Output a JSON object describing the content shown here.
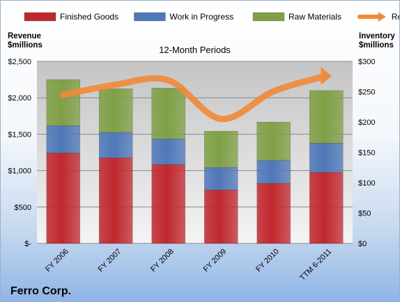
{
  "chart_data": {
    "type": "bar",
    "stacked": true,
    "title": "12-Month Periods",
    "footer": "Ferro Corp.",
    "categories": [
      "FY 2006",
      "FY 2007",
      "FY 2008",
      "FY 2009",
      "FY 2010",
      "TTM 6-2011"
    ],
    "series": [
      {
        "name": "Finished Goods",
        "axis": "right",
        "color": "#c0282d",
        "values": [
          149,
          141,
          130,
          88,
          99,
          117
        ]
      },
      {
        "name": "Work in Progress",
        "axis": "right",
        "color": "#4f78b8",
        "values": [
          45,
          42,
          42,
          37,
          38,
          48
        ]
      },
      {
        "name": "Raw Materials",
        "axis": "right",
        "color": "#7fa046",
        "values": [
          76,
          72,
          84,
          60,
          63,
          87
        ]
      },
      {
        "name": "Revenue",
        "axis": "left",
        "type": "line",
        "color": "#f08a3a",
        "values": [
          2040,
          2180,
          2240,
          1710,
          2090,
          2300
        ]
      }
    ],
    "y_left": {
      "label": [
        "Revenue",
        "$millions"
      ],
      "ylim": [
        0,
        2500
      ],
      "ticks": [
        0,
        500,
        1000,
        1500,
        2000,
        2500
      ],
      "tick_labels": [
        "$-",
        "$500",
        "$1,000",
        "$1,500",
        "$2,000",
        "$2,500"
      ]
    },
    "y_right": {
      "label": [
        "Inventory",
        "$millions"
      ],
      "ylim": [
        0,
        300
      ],
      "ticks": [
        0,
        50,
        100,
        150,
        200,
        250,
        300
      ],
      "tick_labels": [
        "$0",
        "$50",
        "$100",
        "$150",
        "$200",
        "$250",
        "$300"
      ]
    },
    "grid": true,
    "legend": "top"
  }
}
